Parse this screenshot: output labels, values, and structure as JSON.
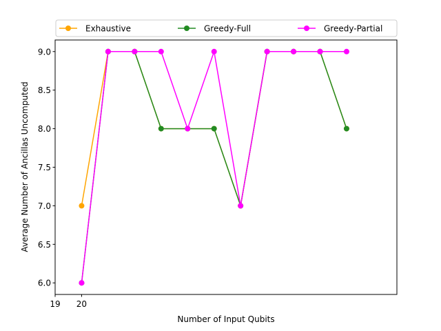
{
  "chart_data": {
    "type": "line",
    "xlabel": "Number of Input Qubits",
    "ylabel": "Average Number of Ancillas Uncomputed",
    "x_tick_labels": [
      "19",
      "20"
    ],
    "y_tick_labels": [
      "6.0",
      "6.5",
      "7.0",
      "7.5",
      "8.0",
      "8.5",
      "9.0"
    ],
    "xlim": [
      19,
      31.9
    ],
    "ylim": [
      5.85,
      9.15
    ],
    "grid": false,
    "legend_placement": "top, above plot, 3 columns",
    "x": [
      20,
      21,
      22,
      23,
      24,
      25,
      26,
      27,
      28,
      29,
      30
    ],
    "series": [
      {
        "name": "Exhaustive",
        "color": "#ffa500",
        "values": [
          7,
          9,
          9,
          8,
          8,
          8,
          7,
          9,
          9,
          9,
          8
        ]
      },
      {
        "name": "Greedy-Full",
        "color": "#228b22",
        "values": [
          6,
          9,
          9,
          8,
          8,
          8,
          7,
          9,
          9,
          9,
          8
        ]
      },
      {
        "name": "Greedy-Partial",
        "color": "#ff00ff",
        "values": [
          6,
          9,
          9,
          9,
          8,
          9,
          7,
          9,
          9,
          9,
          9
        ]
      }
    ]
  }
}
